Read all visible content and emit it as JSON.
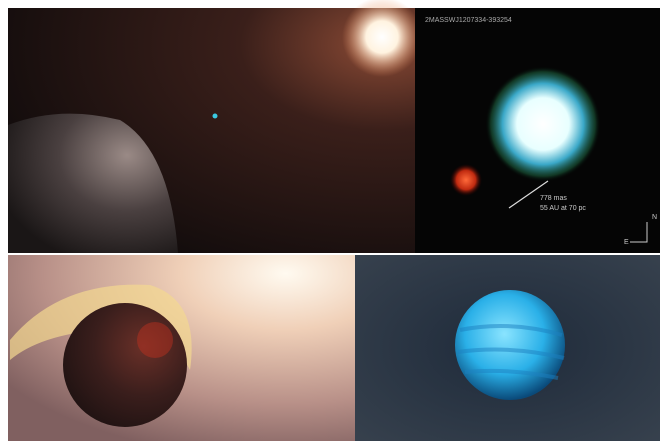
{
  "image": {
    "designation": "2MASSWJ1207334-393254",
    "separation": "778 mas",
    "distance": "55 AU at 70 pc",
    "north": "N",
    "east": "E"
  }
}
